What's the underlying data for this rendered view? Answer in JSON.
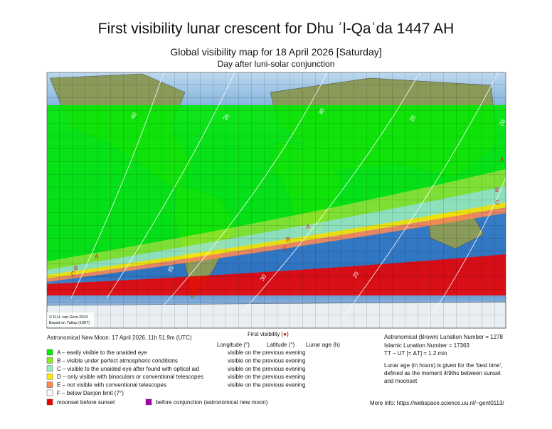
{
  "header": {
    "title": "First visibility lunar crescent for Dhu ʾl-Qaʿda 1447 AH",
    "subtitle": "Global visibility map for 18 April 2026 [Saturday]",
    "note": "Day after luni-solar conjunction"
  },
  "map": {
    "credit": [
      "© R.H. van Gent 2024",
      "Based on Yallop (1997)"
    ],
    "contour_labels": [
      "40",
      "35",
      "30",
      "25",
      "20",
      "35",
      "30",
      "25"
    ],
    "band_labels": [
      "A",
      "B",
      "C",
      "A",
      "B",
      "C",
      "A",
      "B",
      "C"
    ]
  },
  "info": {
    "new_moon": "Astronomical New Moon: 17 April 2026, 11h 51.9m (UTC)",
    "first_visibility": "First visibility (",
    "first_visibility_symbol": "●",
    "first_visibility_close": ")",
    "columns": [
      "Longitude (°)",
      "Latitude (°)",
      "Lunar age (h)"
    ],
    "right": [
      "Astronomical (Brown) Lunation Number = 1278",
      "Islamic Lunation Number = 17363",
      "TT − UT [= ΔT] = 1.2 min"
    ],
    "lunar_age_note": [
      "Lunar age (in hours) is given for the 'best time',",
      "defined as the moment 4/9ths between sunset",
      "and moonset"
    ],
    "more_info": "More info: https://webspace.science.uu.nl/~gent0113/"
  },
  "legend": [
    {
      "label": "A – easily visible to the unaided eye",
      "note": "visible on the previous evening",
      "color": "#00ee00"
    },
    {
      "label": "B – visible under perfect atmospheric conditions",
      "note": "visible on the previous evening",
      "color": "#88ee22"
    },
    {
      "label": "C – visible to the unaided eye after found with optical aid",
      "note": "visible on the previous evening",
      "color": "#99eebb"
    },
    {
      "label": "D – only visible with binoculars or conventional telescopes",
      "note": "visible on the previous evening",
      "color": "#ffee00"
    },
    {
      "label": "E – not visible with conventional telescopes",
      "note": "visible on the previous evening",
      "color": "#ff8855"
    },
    {
      "label": "F – below Danjon limit (7°)",
      "color": "#ffffff"
    }
  ],
  "extra_legend": [
    {
      "label": "moonset before sunset",
      "color": "#ee0000"
    },
    {
      "label": "before conjunction (astronomical new moon)",
      "color": "#aa00aa"
    }
  ]
}
